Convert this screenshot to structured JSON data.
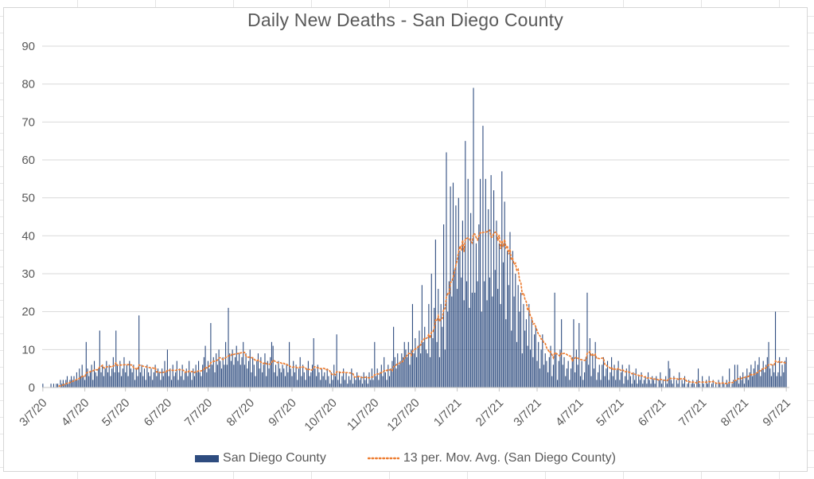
{
  "chart_data": {
    "type": "bar",
    "title": "Daily New Deaths - San Diego County",
    "x_start": "3/7/20",
    "x_end": "9/7/21",
    "x_tick_labels": [
      "3/7/20",
      "4/7/20",
      "5/7/20",
      "6/7/20",
      "7/7/20",
      "8/7/20",
      "9/7/20",
      "10/7/20",
      "11/7/20",
      "12/7/20",
      "1/7/21",
      "2/7/21",
      "3/7/21",
      "4/7/21",
      "5/7/21",
      "6/7/21",
      "7/7/21",
      "8/7/21",
      "9/7/21"
    ],
    "x_tick_day_indices": [
      0,
      31,
      61,
      92,
      122,
      153,
      184,
      214,
      245,
      275,
      306,
      337,
      365,
      396,
      426,
      457,
      487,
      518,
      549
    ],
    "ylim": [
      0,
      90
    ],
    "yticks": [
      0,
      10,
      20,
      30,
      40,
      50,
      60,
      70,
      80,
      90
    ],
    "grid": "horizontal",
    "legend_position": "bottom",
    "series": [
      {
        "name": "San Diego County",
        "type": "bar",
        "color": "#2E4C7F",
        "values": [
          1,
          0,
          0,
          0,
          0,
          0,
          1,
          0,
          1,
          0,
          1,
          1,
          0,
          2,
          1,
          2,
          1,
          2,
          3,
          1,
          2,
          3,
          2,
          3,
          2,
          4,
          2,
          5,
          3,
          6,
          3,
          2,
          12,
          5,
          3,
          4,
          6,
          2,
          7,
          4,
          3,
          5,
          15,
          4,
          6,
          3,
          5,
          7,
          4,
          6,
          3,
          5,
          8,
          4,
          15,
          6,
          4,
          7,
          3,
          5,
          8,
          4,
          6,
          3,
          7,
          5,
          4,
          6,
          2,
          5,
          3,
          19,
          4,
          6,
          3,
          5,
          2,
          6,
          4,
          3,
          5,
          2,
          4,
          6,
          3,
          5,
          4,
          2,
          5,
          3,
          7,
          4,
          10,
          3,
          5,
          2,
          6,
          3,
          4,
          7,
          2,
          5,
          3,
          6,
          2,
          4,
          5,
          3,
          7,
          4,
          2,
          5,
          3,
          6,
          4,
          7,
          4,
          3,
          6,
          8,
          11,
          4,
          7,
          5,
          17,
          6,
          8,
          4,
          9,
          6,
          10,
          7,
          5,
          8,
          6,
          12,
          6,
          21,
          9,
          7,
          10,
          6,
          8,
          11,
          7,
          9,
          6,
          8,
          12,
          6,
          9,
          5,
          7,
          10,
          4,
          8,
          6,
          3,
          7,
          9,
          5,
          8,
          4,
          6,
          9,
          3,
          7,
          5,
          8,
          12,
          11,
          4,
          6,
          3,
          7,
          5,
          4,
          6,
          5,
          3,
          6,
          4,
          12,
          5,
          3,
          7,
          4,
          6,
          2,
          5,
          8,
          3,
          6,
          4,
          2,
          5,
          7,
          3,
          4,
          6,
          13,
          5,
          3,
          6,
          4,
          2,
          5,
          3,
          4,
          2,
          5,
          3,
          1,
          4,
          2,
          6,
          3,
          14,
          2,
          4,
          1,
          3,
          5,
          2,
          4,
          1,
          3,
          2,
          5,
          1,
          3,
          2,
          4,
          3,
          2,
          3,
          1,
          4,
          2,
          3,
          1,
          4,
          2,
          5,
          2,
          12,
          3,
          5,
          2,
          4,
          6,
          3,
          8,
          4,
          2,
          6,
          3,
          5,
          7,
          16,
          8,
          5,
          9,
          6,
          7,
          9,
          8,
          12,
          10,
          8,
          12,
          6,
          10,
          22,
          9,
          13,
          8,
          11,
          15,
          9,
          27,
          12,
          16,
          10,
          9,
          22,
          8,
          30,
          13,
          21,
          39,
          12,
          26,
          8,
          22,
          16,
          43,
          10,
          62,
          20,
          28,
          53,
          24,
          54,
          31,
          48,
          26,
          50,
          36,
          29,
          44,
          23,
          65,
          28,
          55,
          21,
          46,
          25,
          79,
          25,
          38,
          28,
          43,
          55,
          20,
          69,
          28,
          55,
          23,
          47,
          29,
          56,
          24,
          52,
          31,
          44,
          26,
          38,
          22,
          57,
          33,
          49,
          18,
          36,
          27,
          41,
          15,
          36,
          24,
          30,
          12,
          27,
          20,
          25,
          9,
          22,
          15,
          18,
          11,
          22,
          10,
          18,
          8,
          14,
          16,
          7,
          12,
          5,
          10,
          14,
          6,
          9,
          7,
          4,
          8,
          11,
          3,
          6,
          25,
          9,
          2,
          7,
          10,
          18,
          6,
          8,
          3,
          5,
          7,
          2,
          5,
          8,
          18,
          4,
          10,
          6,
          17,
          3,
          7,
          2,
          4,
          8,
          25,
          6,
          13,
          3,
          9,
          5,
          12,
          2,
          4,
          6,
          2,
          6,
          8,
          3,
          5,
          7,
          2,
          4,
          8,
          3,
          6,
          2,
          5,
          7,
          2,
          4,
          6,
          1,
          3,
          5,
          2,
          6,
          3,
          1,
          4,
          2,
          5,
          1,
          3,
          2,
          4,
          1,
          2,
          3,
          1,
          4,
          2,
          1,
          3,
          2,
          1,
          3,
          0,
          2,
          4,
          1,
          2,
          0,
          3,
          1,
          7,
          5,
          2,
          1,
          3,
          0,
          2,
          1,
          4,
          0,
          2,
          1,
          3,
          0,
          1,
          2,
          0,
          1,
          2,
          1,
          0,
          2,
          5,
          1,
          0,
          3,
          1,
          0,
          2,
          1,
          3,
          0,
          1,
          2,
          0,
          1,
          0,
          2,
          1,
          0,
          3,
          1,
          0,
          2,
          1,
          5,
          0,
          1,
          2,
          6,
          2,
          6,
          1,
          3,
          2,
          4,
          1,
          3,
          5,
          2,
          4,
          6,
          3,
          5,
          7,
          4,
          6,
          8,
          3,
          5,
          7,
          4,
          6,
          8,
          12,
          5,
          3,
          6,
          4,
          20,
          3,
          4,
          8,
          3,
          6,
          4,
          7,
          8
        ]
      }
    ],
    "overlays": [
      {
        "name": "13 per. Mov. Avg. (San Diego County)",
        "type": "line",
        "style": "dotted",
        "color": "#ED7D31",
        "period": 13,
        "derived_from": "San Diego County"
      }
    ]
  }
}
